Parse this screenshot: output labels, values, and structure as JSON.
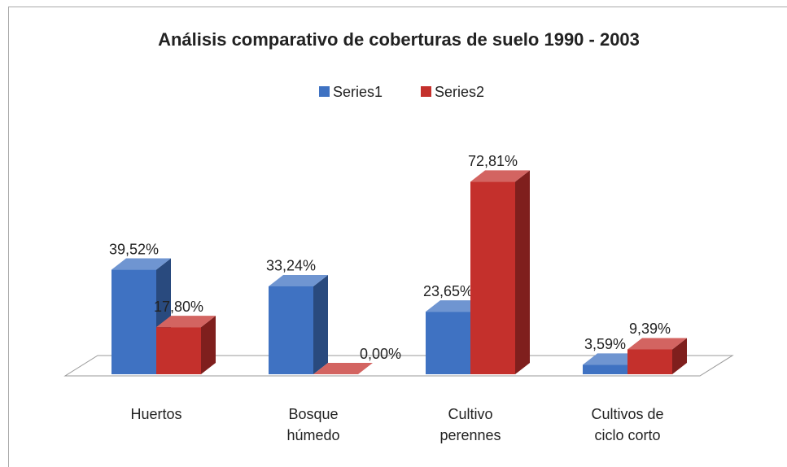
{
  "chart_data": {
    "type": "bar3d",
    "title": "Análisis comparativo de coberturas de suelo 1990 - 2003",
    "categories": [
      "Huertos",
      "Bosque húmedo",
      "Cultivo perennes",
      "Cultivos de ciclo corto"
    ],
    "series": [
      {
        "name": "Series1",
        "color": "#3f72c2",
        "values": [
          39.52,
          33.24,
          23.65,
          3.59
        ],
        "value_labels": [
          "39,52%",
          "33,24%",
          "23,65%",
          "3,59%"
        ]
      },
      {
        "name": "Series2",
        "color": "#c4302c",
        "values": [
          17.8,
          0.0,
          72.81,
          9.39
        ],
        "value_labels": [
          "17,80%",
          "0,00%",
          "72,81%",
          "9,39%"
        ]
      }
    ]
  }
}
